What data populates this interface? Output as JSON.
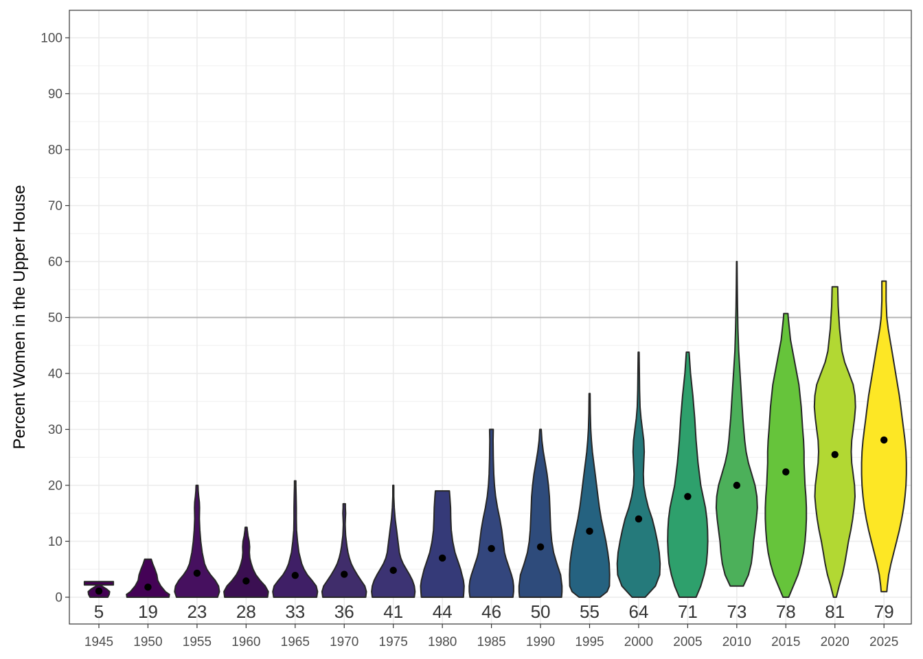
{
  "chart_data": {
    "type": "violin",
    "title": "",
    "xlabel": "",
    "ylabel": "Percent Women in the Upper House",
    "ylim": [
      -5,
      105
    ],
    "yticks": [
      0,
      10,
      20,
      30,
      40,
      50,
      60,
      70,
      80,
      90,
      100
    ],
    "grid": true,
    "reference_line": 50,
    "categories": [
      "1945",
      "1950",
      "1955",
      "1960",
      "1965",
      "1970",
      "1975",
      "1980",
      "1985",
      "1990",
      "1995",
      "2000",
      "2005",
      "2010",
      "2015",
      "2020",
      "2025"
    ],
    "counts": [
      "5",
      "19",
      "23",
      "28",
      "33",
      "36",
      "41",
      "44",
      "46",
      "50",
      "55",
      "64",
      "71",
      "73",
      "78",
      "81",
      "79"
    ],
    "means": [
      1.1,
      1.8,
      4.3,
      2.9,
      3.9,
      4.1,
      4.8,
      7.0,
      8.7,
      9.0,
      11.8,
      14.0,
      18.0,
      20.0,
      22.4,
      25.5,
      28.1
    ],
    "fill_colors": [
      "#440154",
      "#440256",
      "#46105f",
      "#3b0f52",
      "#3f1f66",
      "#402d6b",
      "#3c3373",
      "#353a78",
      "#33467d",
      "#2e4b7b",
      "#256280",
      "#257a7b",
      "#2ea06c",
      "#4cb05a",
      "#66c43b",
      "#b2d833",
      "#fde725"
    ],
    "violins": [
      {
        "year": "1945",
        "profile": [
          [
            0,
            0.38
          ],
          [
            0.5,
            0.44
          ],
          [
            1,
            0.46
          ],
          [
            1.5,
            0.32
          ],
          [
            2,
            0.12
          ],
          [
            2.2,
            0.02
          ],
          [
            2.2,
            0.62
          ],
          [
            2.8,
            0.62
          ]
        ]
      },
      {
        "year": "1950",
        "profile": [
          [
            0,
            0.9
          ],
          [
            0.5,
            0.92
          ],
          [
            1,
            0.75
          ],
          [
            2,
            0.55
          ],
          [
            3,
            0.42
          ],
          [
            4,
            0.38
          ],
          [
            5,
            0.3
          ],
          [
            6,
            0.2
          ],
          [
            6.8,
            0.14
          ]
        ]
      },
      {
        "year": "1955",
        "profile": [
          [
            0,
            0.88
          ],
          [
            1,
            0.96
          ],
          [
            2,
            0.92
          ],
          [
            3,
            0.78
          ],
          [
            4,
            0.58
          ],
          [
            5,
            0.42
          ],
          [
            6,
            0.32
          ],
          [
            8,
            0.22
          ],
          [
            10,
            0.16
          ],
          [
            12,
            0.12
          ],
          [
            14,
            0.1
          ],
          [
            16,
            0.11
          ],
          [
            17,
            0.1
          ],
          [
            18,
            0.07
          ],
          [
            19,
            0.05
          ],
          [
            20,
            0.04
          ]
        ]
      },
      {
        "year": "1960",
        "profile": [
          [
            0,
            0.92
          ],
          [
            1,
            0.95
          ],
          [
            2,
            0.82
          ],
          [
            3,
            0.6
          ],
          [
            4,
            0.42
          ],
          [
            5,
            0.3
          ],
          [
            6,
            0.22
          ],
          [
            7,
            0.16
          ],
          [
            8,
            0.14
          ],
          [
            9,
            0.15
          ],
          [
            10,
            0.13
          ],
          [
            11,
            0.08
          ],
          [
            12,
            0.05
          ],
          [
            12.5,
            0.04
          ]
        ]
      },
      {
        "year": "1965",
        "profile": [
          [
            0,
            0.92
          ],
          [
            1,
            0.96
          ],
          [
            2,
            0.9
          ],
          [
            3,
            0.72
          ],
          [
            4,
            0.52
          ],
          [
            5,
            0.38
          ],
          [
            6,
            0.28
          ],
          [
            8,
            0.16
          ],
          [
            10,
            0.1
          ],
          [
            12,
            0.06
          ],
          [
            14,
            0.05
          ],
          [
            16,
            0.05
          ],
          [
            18,
            0.04
          ],
          [
            20,
            0.03
          ],
          [
            20.8,
            0.03
          ]
        ]
      },
      {
        "year": "1970",
        "profile": [
          [
            0,
            0.92
          ],
          [
            1,
            0.95
          ],
          [
            2,
            0.88
          ],
          [
            3,
            0.72
          ],
          [
            4,
            0.56
          ],
          [
            5,
            0.42
          ],
          [
            6,
            0.3
          ],
          [
            7,
            0.22
          ],
          [
            8,
            0.16
          ],
          [
            9,
            0.12
          ],
          [
            10,
            0.09
          ],
          [
            11,
            0.06
          ],
          [
            12,
            0.05
          ],
          [
            13,
            0.04
          ],
          [
            14,
            0.05
          ],
          [
            15,
            0.06
          ],
          [
            16,
            0.05
          ],
          [
            16.7,
            0.05
          ]
        ]
      },
      {
        "year": "1975",
        "profile": [
          [
            0,
            0.9
          ],
          [
            1,
            0.93
          ],
          [
            2,
            0.9
          ],
          [
            3,
            0.82
          ],
          [
            4,
            0.7
          ],
          [
            5,
            0.56
          ],
          [
            6,
            0.42
          ],
          [
            7,
            0.32
          ],
          [
            8,
            0.26
          ],
          [
            10,
            0.2
          ],
          [
            12,
            0.14
          ],
          [
            14,
            0.08
          ],
          [
            16,
            0.04
          ],
          [
            18,
            0.02
          ],
          [
            20,
            0.02
          ]
        ]
      },
      {
        "year": "1980",
        "profile": [
          [
            0,
            0.9
          ],
          [
            1,
            0.92
          ],
          [
            2,
            0.93
          ],
          [
            3,
            0.9
          ],
          [
            4,
            0.84
          ],
          [
            5,
            0.78
          ],
          [
            6,
            0.7
          ],
          [
            7,
            0.62
          ],
          [
            8,
            0.54
          ],
          [
            10,
            0.44
          ],
          [
            12,
            0.38
          ],
          [
            14,
            0.36
          ],
          [
            16,
            0.35
          ],
          [
            18,
            0.32
          ],
          [
            19,
            0.3
          ]
        ]
      },
      {
        "year": "1985",
        "profile": [
          [
            0,
            0.92
          ],
          [
            1,
            0.95
          ],
          [
            2,
            0.95
          ],
          [
            3,
            0.92
          ],
          [
            4,
            0.86
          ],
          [
            5,
            0.78
          ],
          [
            6,
            0.7
          ],
          [
            7,
            0.62
          ],
          [
            8,
            0.56
          ],
          [
            10,
            0.5
          ],
          [
            12,
            0.44
          ],
          [
            14,
            0.36
          ],
          [
            16,
            0.26
          ],
          [
            18,
            0.18
          ],
          [
            20,
            0.13
          ],
          [
            22,
            0.1
          ],
          [
            25,
            0.08
          ],
          [
            28,
            0.07
          ],
          [
            30,
            0.08
          ]
        ]
      },
      {
        "year": "1990",
        "profile": [
          [
            0,
            0.9
          ],
          [
            1,
            0.92
          ],
          [
            2,
            0.92
          ],
          [
            4,
            0.86
          ],
          [
            6,
            0.7
          ],
          [
            8,
            0.56
          ],
          [
            10,
            0.48
          ],
          [
            12,
            0.44
          ],
          [
            14,
            0.42
          ],
          [
            16,
            0.4
          ],
          [
            18,
            0.38
          ],
          [
            20,
            0.34
          ],
          [
            22,
            0.28
          ],
          [
            24,
            0.2
          ],
          [
            26,
            0.12
          ],
          [
            28,
            0.06
          ],
          [
            30,
            0.03
          ]
        ]
      },
      {
        "year": "1995",
        "profile": [
          [
            0,
            0.45
          ],
          [
            1,
            0.75
          ],
          [
            2,
            0.85
          ],
          [
            4,
            0.86
          ],
          [
            6,
            0.84
          ],
          [
            8,
            0.78
          ],
          [
            10,
            0.7
          ],
          [
            12,
            0.6
          ],
          [
            14,
            0.5
          ],
          [
            16,
            0.42
          ],
          [
            18,
            0.36
          ],
          [
            20,
            0.3
          ],
          [
            22,
            0.24
          ],
          [
            24,
            0.18
          ],
          [
            26,
            0.12
          ],
          [
            28,
            0.08
          ],
          [
            30,
            0.05
          ],
          [
            33,
            0.03
          ],
          [
            36.4,
            0.02
          ]
        ]
      },
      {
        "year": "2000",
        "profile": [
          [
            0,
            0.28
          ],
          [
            2,
            0.72
          ],
          [
            4,
            0.9
          ],
          [
            6,
            0.92
          ],
          [
            8,
            0.88
          ],
          [
            10,
            0.8
          ],
          [
            12,
            0.7
          ],
          [
            14,
            0.58
          ],
          [
            16,
            0.42
          ],
          [
            18,
            0.3
          ],
          [
            20,
            0.22
          ],
          [
            22,
            0.2
          ],
          [
            24,
            0.22
          ],
          [
            26,
            0.24
          ],
          [
            28,
            0.22
          ],
          [
            30,
            0.16
          ],
          [
            32,
            0.1
          ],
          [
            34,
            0.06
          ],
          [
            37,
            0.04
          ],
          [
            40,
            0.03
          ],
          [
            43.8,
            0.02
          ]
        ]
      },
      {
        "year": "2005",
        "profile": [
          [
            0,
            0.36
          ],
          [
            2,
            0.56
          ],
          [
            4,
            0.7
          ],
          [
            6,
            0.8
          ],
          [
            8,
            0.84
          ],
          [
            10,
            0.86
          ],
          [
            12,
            0.85
          ],
          [
            14,
            0.82
          ],
          [
            16,
            0.76
          ],
          [
            18,
            0.66
          ],
          [
            20,
            0.56
          ],
          [
            24,
            0.44
          ],
          [
            28,
            0.36
          ],
          [
            32,
            0.3
          ],
          [
            36,
            0.22
          ],
          [
            40,
            0.12
          ],
          [
            43.8,
            0.06
          ]
        ]
      },
      {
        "year": "2010",
        "profile": [
          [
            2,
            0.28
          ],
          [
            4,
            0.5
          ],
          [
            6,
            0.62
          ],
          [
            8,
            0.68
          ],
          [
            10,
            0.72
          ],
          [
            12,
            0.78
          ],
          [
            14,
            0.84
          ],
          [
            16,
            0.88
          ],
          [
            18,
            0.86
          ],
          [
            20,
            0.78
          ],
          [
            22,
            0.64
          ],
          [
            24,
            0.5
          ],
          [
            26,
            0.4
          ],
          [
            28,
            0.34
          ],
          [
            30,
            0.3
          ],
          [
            32,
            0.26
          ],
          [
            36,
            0.2
          ],
          [
            40,
            0.14
          ],
          [
            44,
            0.08
          ],
          [
            48,
            0.05
          ],
          [
            52,
            0.03
          ],
          [
            56,
            0.02
          ],
          [
            60,
            0.01
          ]
        ]
      },
      {
        "year": "2015",
        "profile": [
          [
            0,
            0.12
          ],
          [
            2,
            0.32
          ],
          [
            4,
            0.52
          ],
          [
            6,
            0.66
          ],
          [
            8,
            0.76
          ],
          [
            10,
            0.82
          ],
          [
            12,
            0.86
          ],
          [
            14,
            0.88
          ],
          [
            16,
            0.88
          ],
          [
            18,
            0.86
          ],
          [
            20,
            0.82
          ],
          [
            22,
            0.8
          ],
          [
            24,
            0.78
          ],
          [
            26,
            0.78
          ],
          [
            28,
            0.76
          ],
          [
            30,
            0.72
          ],
          [
            34,
            0.66
          ],
          [
            38,
            0.56
          ],
          [
            42,
            0.38
          ],
          [
            46,
            0.2
          ],
          [
            50,
            0.1
          ],
          [
            50.7,
            0.09
          ]
        ]
      },
      {
        "year": "2020",
        "profile": [
          [
            0,
            0.06
          ],
          [
            2,
            0.18
          ],
          [
            4,
            0.32
          ],
          [
            6,
            0.42
          ],
          [
            8,
            0.5
          ],
          [
            10,
            0.58
          ],
          [
            12,
            0.68
          ],
          [
            14,
            0.76
          ],
          [
            16,
            0.82
          ],
          [
            18,
            0.86
          ],
          [
            20,
            0.84
          ],
          [
            22,
            0.78
          ],
          [
            24,
            0.72
          ],
          [
            26,
            0.7
          ],
          [
            28,
            0.72
          ],
          [
            30,
            0.78
          ],
          [
            32,
            0.84
          ],
          [
            34,
            0.88
          ],
          [
            36,
            0.86
          ],
          [
            38,
            0.78
          ],
          [
            40,
            0.6
          ],
          [
            42,
            0.42
          ],
          [
            44,
            0.3
          ],
          [
            48,
            0.2
          ],
          [
            52,
            0.14
          ],
          [
            55.5,
            0.12
          ]
        ]
      },
      {
        "year": "2025",
        "profile": [
          [
            1,
            0.12
          ],
          [
            2,
            0.14
          ],
          [
            4,
            0.2
          ],
          [
            6,
            0.3
          ],
          [
            8,
            0.42
          ],
          [
            10,
            0.54
          ],
          [
            12,
            0.66
          ],
          [
            14,
            0.76
          ],
          [
            16,
            0.84
          ],
          [
            18,
            0.9
          ],
          [
            20,
            0.94
          ],
          [
            22,
            0.96
          ],
          [
            24,
            0.96
          ],
          [
            26,
            0.94
          ],
          [
            28,
            0.9
          ],
          [
            30,
            0.84
          ],
          [
            32,
            0.78
          ],
          [
            34,
            0.72
          ],
          [
            36,
            0.66
          ],
          [
            38,
            0.58
          ],
          [
            40,
            0.5
          ],
          [
            42,
            0.42
          ],
          [
            44,
            0.34
          ],
          [
            46,
            0.26
          ],
          [
            48,
            0.18
          ],
          [
            50,
            0.12
          ],
          [
            53,
            0.09
          ],
          [
            56.5,
            0.09
          ]
        ]
      }
    ]
  }
}
